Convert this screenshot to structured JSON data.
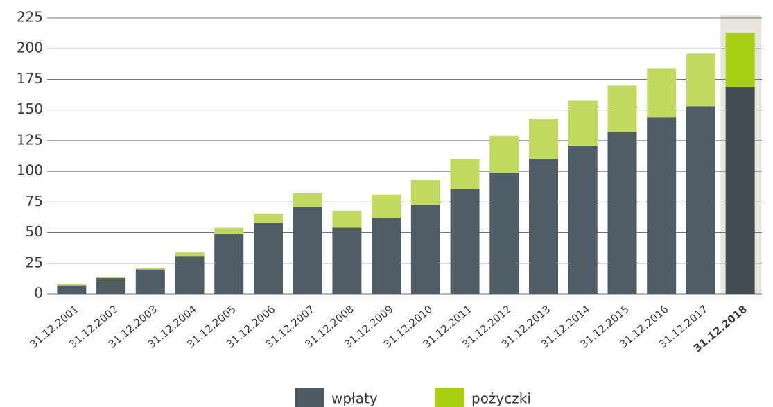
{
  "chart_data": {
    "type": "stacked_bar",
    "categories": [
      "31.12.2001",
      "31.12.2002",
      "31.12.2003",
      "31.12.2004",
      "31.12.2005",
      "31.12.2006",
      "31.12.2007",
      "31.12.2008",
      "31.12.2009",
      "31.12.2010",
      "31.12.2011",
      "31.12.2012",
      "31.12.2013",
      "31.12.2014",
      "31.12.2015",
      "31.12.2016",
      "31.12.2017",
      "31.12.2018"
    ],
    "series": [
      {
        "name": "wpłaty",
        "color": "#4f5b64",
        "bar_color": "#4f5d66",
        "highlight_color": "#434c51",
        "values": [
          7,
          13,
          20,
          31,
          49,
          58,
          71,
          54,
          62,
          73,
          86,
          99,
          110,
          121,
          132,
          144,
          153,
          169
        ]
      },
      {
        "name": "pożyczki",
        "color": "#a8cf12",
        "bar_color": "#c2d95f",
        "highlight_color": "#a8cf12",
        "values": [
          1,
          1,
          1,
          3,
          5,
          7,
          11,
          14,
          19,
          20,
          24,
          30,
          33,
          37,
          38,
          40,
          43,
          44
        ]
      }
    ],
    "highlight_background": "#e8e6dc",
    "ylim": [
      0,
      225
    ],
    "yticks": [
      0,
      25,
      50,
      75,
      100,
      125,
      150,
      175,
      200,
      225
    ],
    "grid": true
  }
}
